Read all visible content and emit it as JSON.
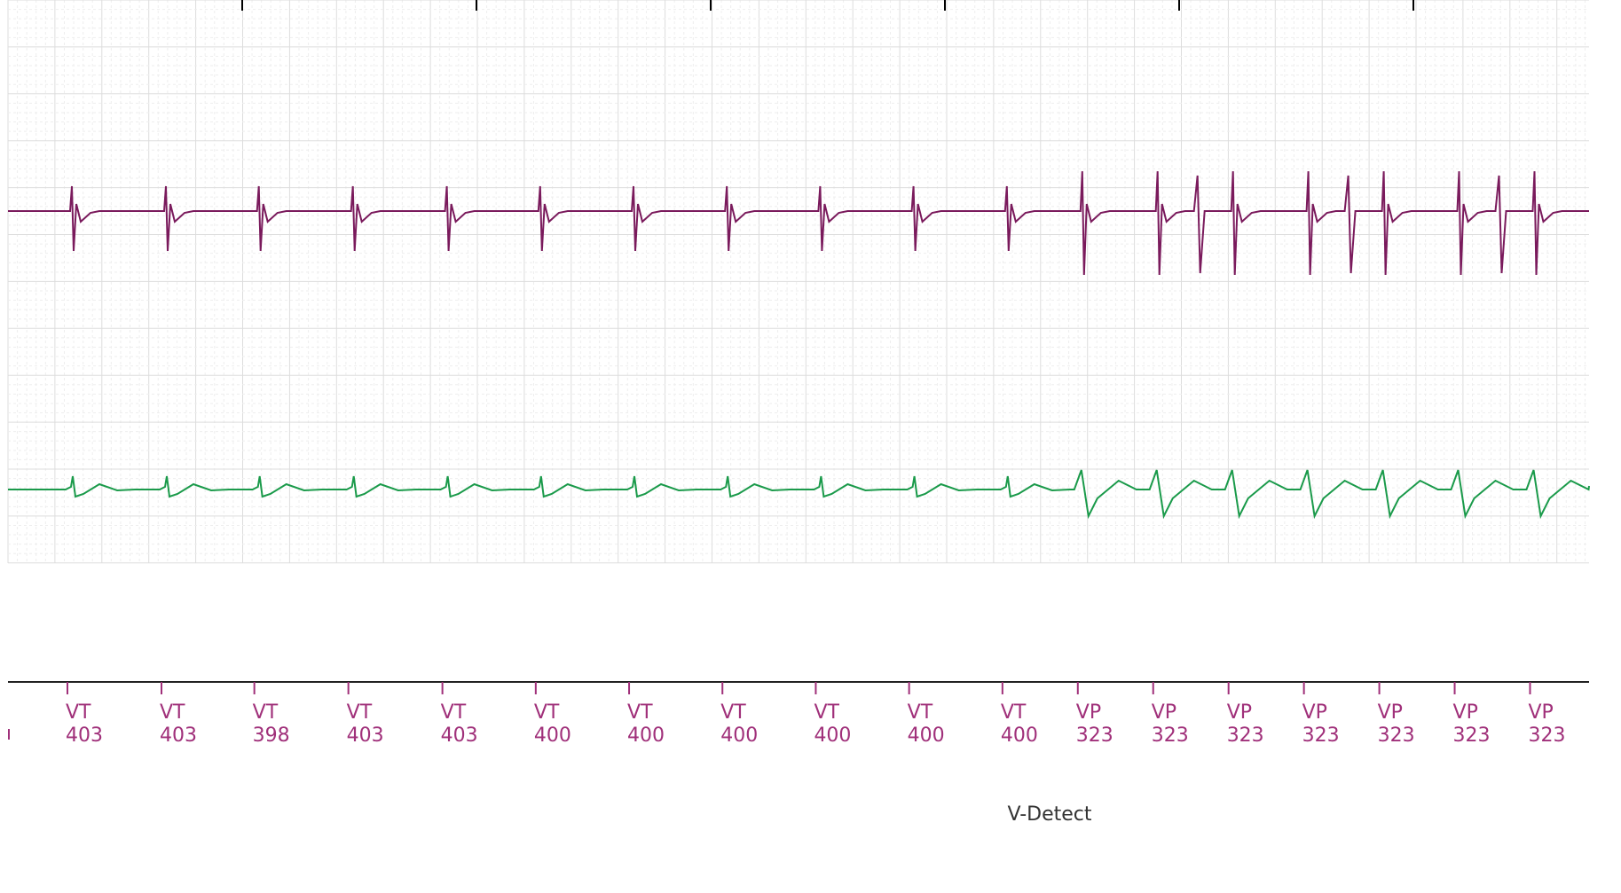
{
  "markers": [
    {
      "label": "VT",
      "interval": 403
    },
    {
      "label": "VT",
      "interval": 403
    },
    {
      "label": "VT",
      "interval": 398
    },
    {
      "label": "VT",
      "interval": 403
    },
    {
      "label": "VT",
      "interval": 403
    },
    {
      "label": "VT",
      "interval": 400
    },
    {
      "label": "VT",
      "interval": 400
    },
    {
      "label": "VT",
      "interval": 400
    },
    {
      "label": "VT",
      "interval": 400
    },
    {
      "label": "VT",
      "interval": 400
    },
    {
      "label": "VT",
      "interval": 400
    },
    {
      "label": "VP",
      "interval": 323
    },
    {
      "label": "VP",
      "interval": 323
    },
    {
      "label": "VP",
      "interval": 323
    },
    {
      "label": "VP",
      "interval": 323
    },
    {
      "label": "VP",
      "interval": 323
    },
    {
      "label": "VP",
      "interval": 323
    },
    {
      "label": "VP",
      "interval": 323
    }
  ],
  "channel_label": "V-Detect"
}
